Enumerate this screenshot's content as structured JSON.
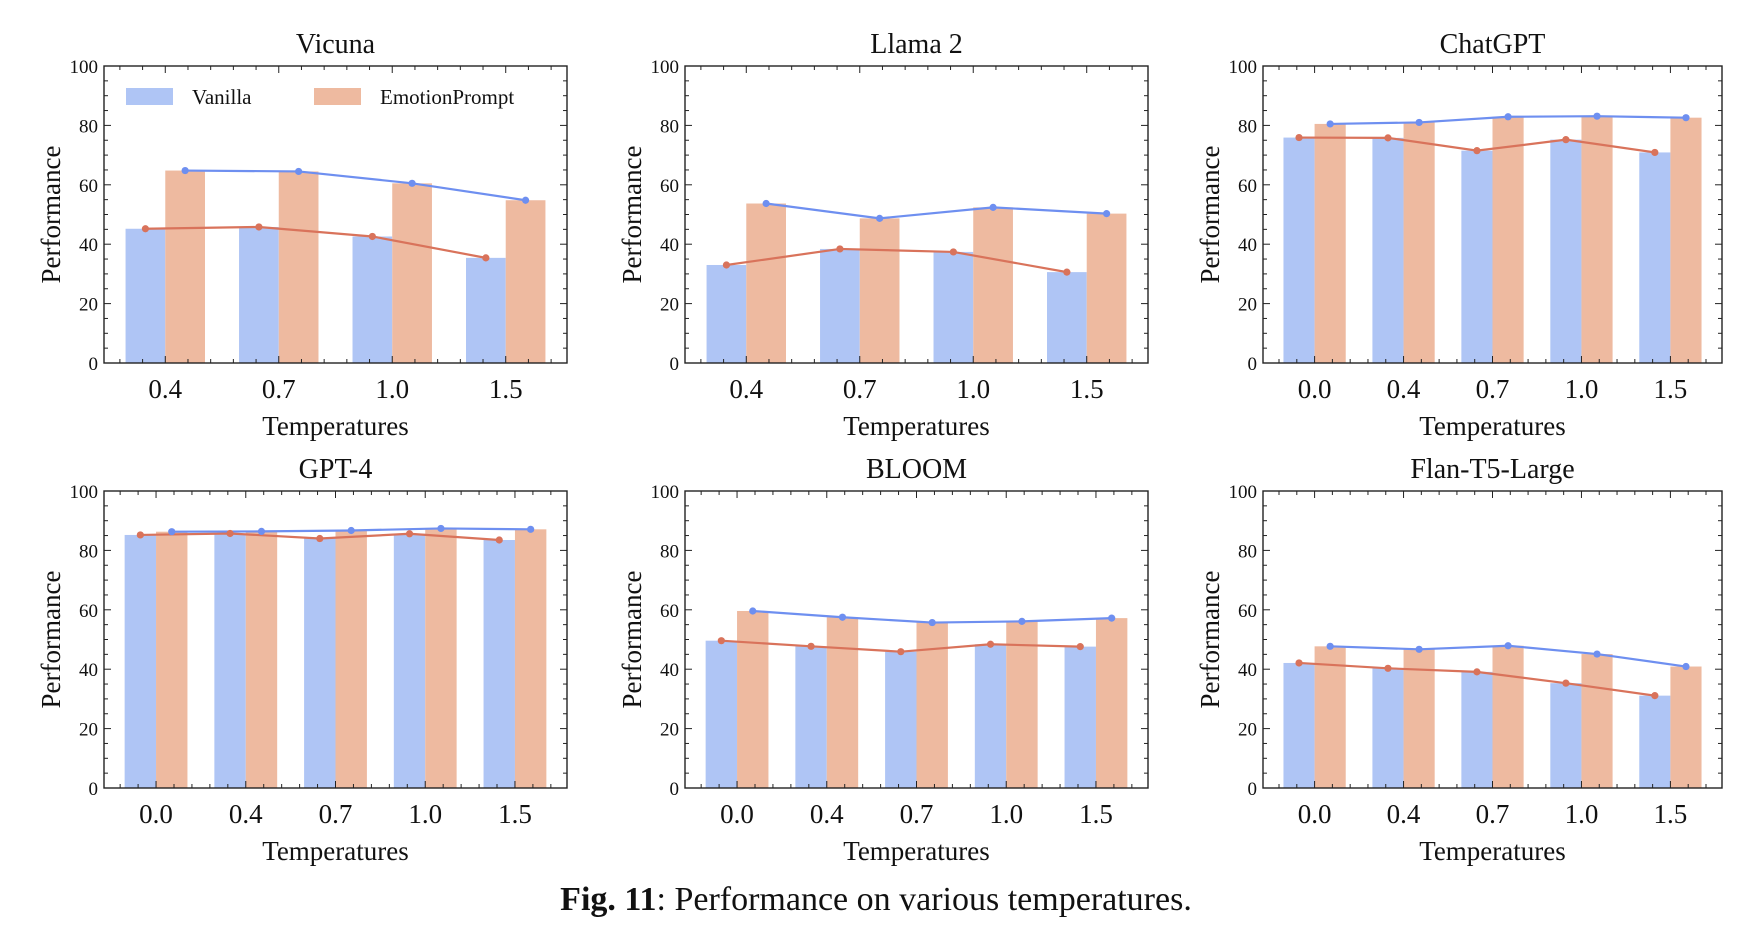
{
  "caption": {
    "label": "Fig. 11",
    "text": ": Performance on various temperatures."
  },
  "colors": {
    "vanilla_bar": "#afc5f5",
    "emotion_bar": "#eebaa0",
    "vanilla_line": "#d9735b",
    "emotion_line": "#6e8ff0"
  },
  "legend": {
    "placement": "top",
    "vanilla": "Vanilla",
    "emotion": "EmotionPrompt"
  },
  "chart_data": [
    {
      "type": "bar",
      "title": "Vicuna",
      "xlabel": "Temperatures",
      "ylabel": "Performance",
      "ylim": [
        0,
        100
      ],
      "yticks": [
        "0",
        "20",
        "40",
        "60",
        "80",
        "100"
      ],
      "categories": [
        "0.4",
        "0.7",
        "1.0",
        "1.5"
      ],
      "series": [
        {
          "name": "Vanilla",
          "values": [
            45.2,
            45.8,
            42.6,
            35.4
          ]
        },
        {
          "name": "EmotionPrompt",
          "values": [
            64.8,
            64.5,
            60.5,
            54.8
          ]
        }
      ]
    },
    {
      "type": "bar",
      "title": "Llama 2",
      "xlabel": "Temperatures",
      "ylabel": "Performance",
      "ylim": [
        0,
        100
      ],
      "yticks": [
        "0",
        "20",
        "40",
        "60",
        "80",
        "100"
      ],
      "categories": [
        "0.4",
        "0.7",
        "1.0",
        "1.5"
      ],
      "series": [
        {
          "name": "Vanilla",
          "values": [
            33.0,
            38.4,
            37.4,
            30.6
          ]
        },
        {
          "name": "EmotionPrompt",
          "values": [
            53.7,
            48.7,
            52.4,
            50.3
          ]
        }
      ]
    },
    {
      "type": "bar",
      "title": "ChatGPT",
      "xlabel": "Temperatures",
      "ylabel": "Performance",
      "ylim": [
        0,
        100
      ],
      "yticks": [
        "0",
        "20",
        "40",
        "60",
        "80",
        "100"
      ],
      "categories": [
        "0.0",
        "0.4",
        "0.7",
        "1.0",
        "1.5"
      ],
      "series": [
        {
          "name": "Vanilla",
          "values": [
            75.9,
            75.8,
            71.5,
            75.2,
            70.9
          ]
        },
        {
          "name": "EmotionPrompt",
          "values": [
            80.5,
            81.0,
            82.9,
            83.1,
            82.6
          ]
        }
      ]
    },
    {
      "type": "bar",
      "title": "GPT-4",
      "xlabel": "Temperatures",
      "ylabel": "Performance",
      "ylim": [
        0,
        100
      ],
      "yticks": [
        "0",
        "20",
        "40",
        "60",
        "80",
        "100"
      ],
      "categories": [
        "0.0",
        "0.4",
        "0.7",
        "1.0",
        "1.5"
      ],
      "series": [
        {
          "name": "Vanilla",
          "values": [
            85.2,
            85.7,
            84.0,
            85.6,
            83.5
          ]
        },
        {
          "name": "EmotionPrompt",
          "values": [
            86.3,
            86.4,
            86.7,
            87.4,
            87.1
          ]
        }
      ]
    },
    {
      "type": "bar",
      "title": "BLOOM",
      "xlabel": "Temperatures",
      "ylabel": "Performance",
      "ylim": [
        0,
        100
      ],
      "yticks": [
        "0",
        "20",
        "40",
        "60",
        "80",
        "100"
      ],
      "categories": [
        "0.0",
        "0.4",
        "0.7",
        "1.0",
        "1.5"
      ],
      "series": [
        {
          "name": "Vanilla",
          "values": [
            49.6,
            47.7,
            45.9,
            48.4,
            47.6
          ]
        },
        {
          "name": "EmotionPrompt",
          "values": [
            59.6,
            57.5,
            55.7,
            56.1,
            57.2
          ]
        }
      ]
    },
    {
      "type": "bar",
      "title": "Flan-T5-Large",
      "xlabel": "Temperatures",
      "ylabel": "Performance",
      "ylim": [
        0,
        100
      ],
      "yticks": [
        "0",
        "20",
        "40",
        "60",
        "80",
        "100"
      ],
      "categories": [
        "0.0",
        "0.4",
        "0.7",
        "1.0",
        "1.5"
      ],
      "series": [
        {
          "name": "Vanilla",
          "values": [
            42.1,
            40.3,
            39.1,
            35.3,
            31.1
          ]
        },
        {
          "name": "EmotionPrompt",
          "values": [
            47.7,
            46.7,
            47.9,
            45.1,
            40.9
          ]
        }
      ]
    }
  ]
}
